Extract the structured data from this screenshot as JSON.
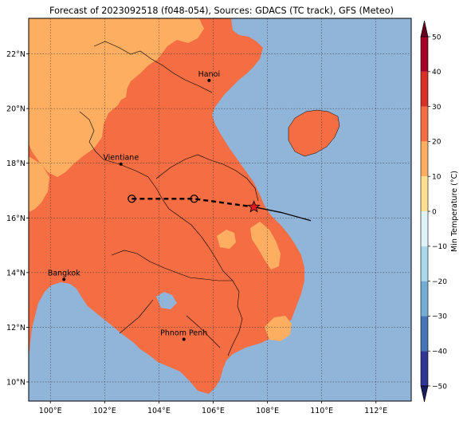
{
  "title": "Forecast of 2023092518 (f048-054), Sources: GDACS (TC track), GFS (Meteo)",
  "map": {
    "lon_range": [
      99.2,
      113.3
    ],
    "lat_range": [
      9.3,
      23.3
    ],
    "lon_ticks": [
      100,
      102,
      104,
      106,
      108,
      110,
      112
    ],
    "lon_tick_labels": [
      "100°E",
      "102°E",
      "104°E",
      "106°E",
      "108°E",
      "110°E",
      "112°E"
    ],
    "lat_ticks": [
      10,
      12,
      14,
      16,
      18,
      20,
      22
    ],
    "lat_tick_labels": [
      "10°N",
      "12°N",
      "14°N",
      "16°N",
      "18°N",
      "20°N",
      "22°N"
    ],
    "grid": true,
    "ocean_color": "#91b4d9",
    "land_base_color": "#f46d43",
    "cool_color": "#fdae61"
  },
  "cities": [
    {
      "name": "Hanoi",
      "lon": 105.85,
      "lat": 21.03
    },
    {
      "name": "Vientiane",
      "lon": 102.6,
      "lat": 17.97
    },
    {
      "name": "Bangkok",
      "lon": 100.5,
      "lat": 13.75
    },
    {
      "name": "Phnom Penh",
      "lon": 104.92,
      "lat": 11.56
    }
  ],
  "track": {
    "forecast": [
      {
        "lon": 103.0,
        "lat": 16.7
      },
      {
        "lon": 105.3,
        "lat": 16.7
      },
      {
        "lon": 107.5,
        "lat": 16.4
      }
    ],
    "past": [
      {
        "lon": 107.5,
        "lat": 16.4
      },
      {
        "lon": 108.5,
        "lat": 16.2
      },
      {
        "lon": 109.6,
        "lat": 15.9
      }
    ],
    "circle_points": [
      {
        "lon": 103.0,
        "lat": 16.7
      },
      {
        "lon": 105.3,
        "lat": 16.7
      }
    ],
    "current_position": {
      "lon": 107.5,
      "lat": 16.4
    }
  },
  "colorbar": {
    "label": "Min Temperature (°C)",
    "min": -50,
    "max": 50,
    "ticks": [
      -50,
      -40,
      -30,
      -20,
      -10,
      0,
      10,
      20,
      30,
      40,
      50
    ],
    "colors": [
      "#313695",
      "#4575b4",
      "#74add1",
      "#abd9e9",
      "#e0f3f8",
      "#fee090",
      "#fdae61",
      "#f46d43",
      "#d73027",
      "#a50026"
    ]
  }
}
